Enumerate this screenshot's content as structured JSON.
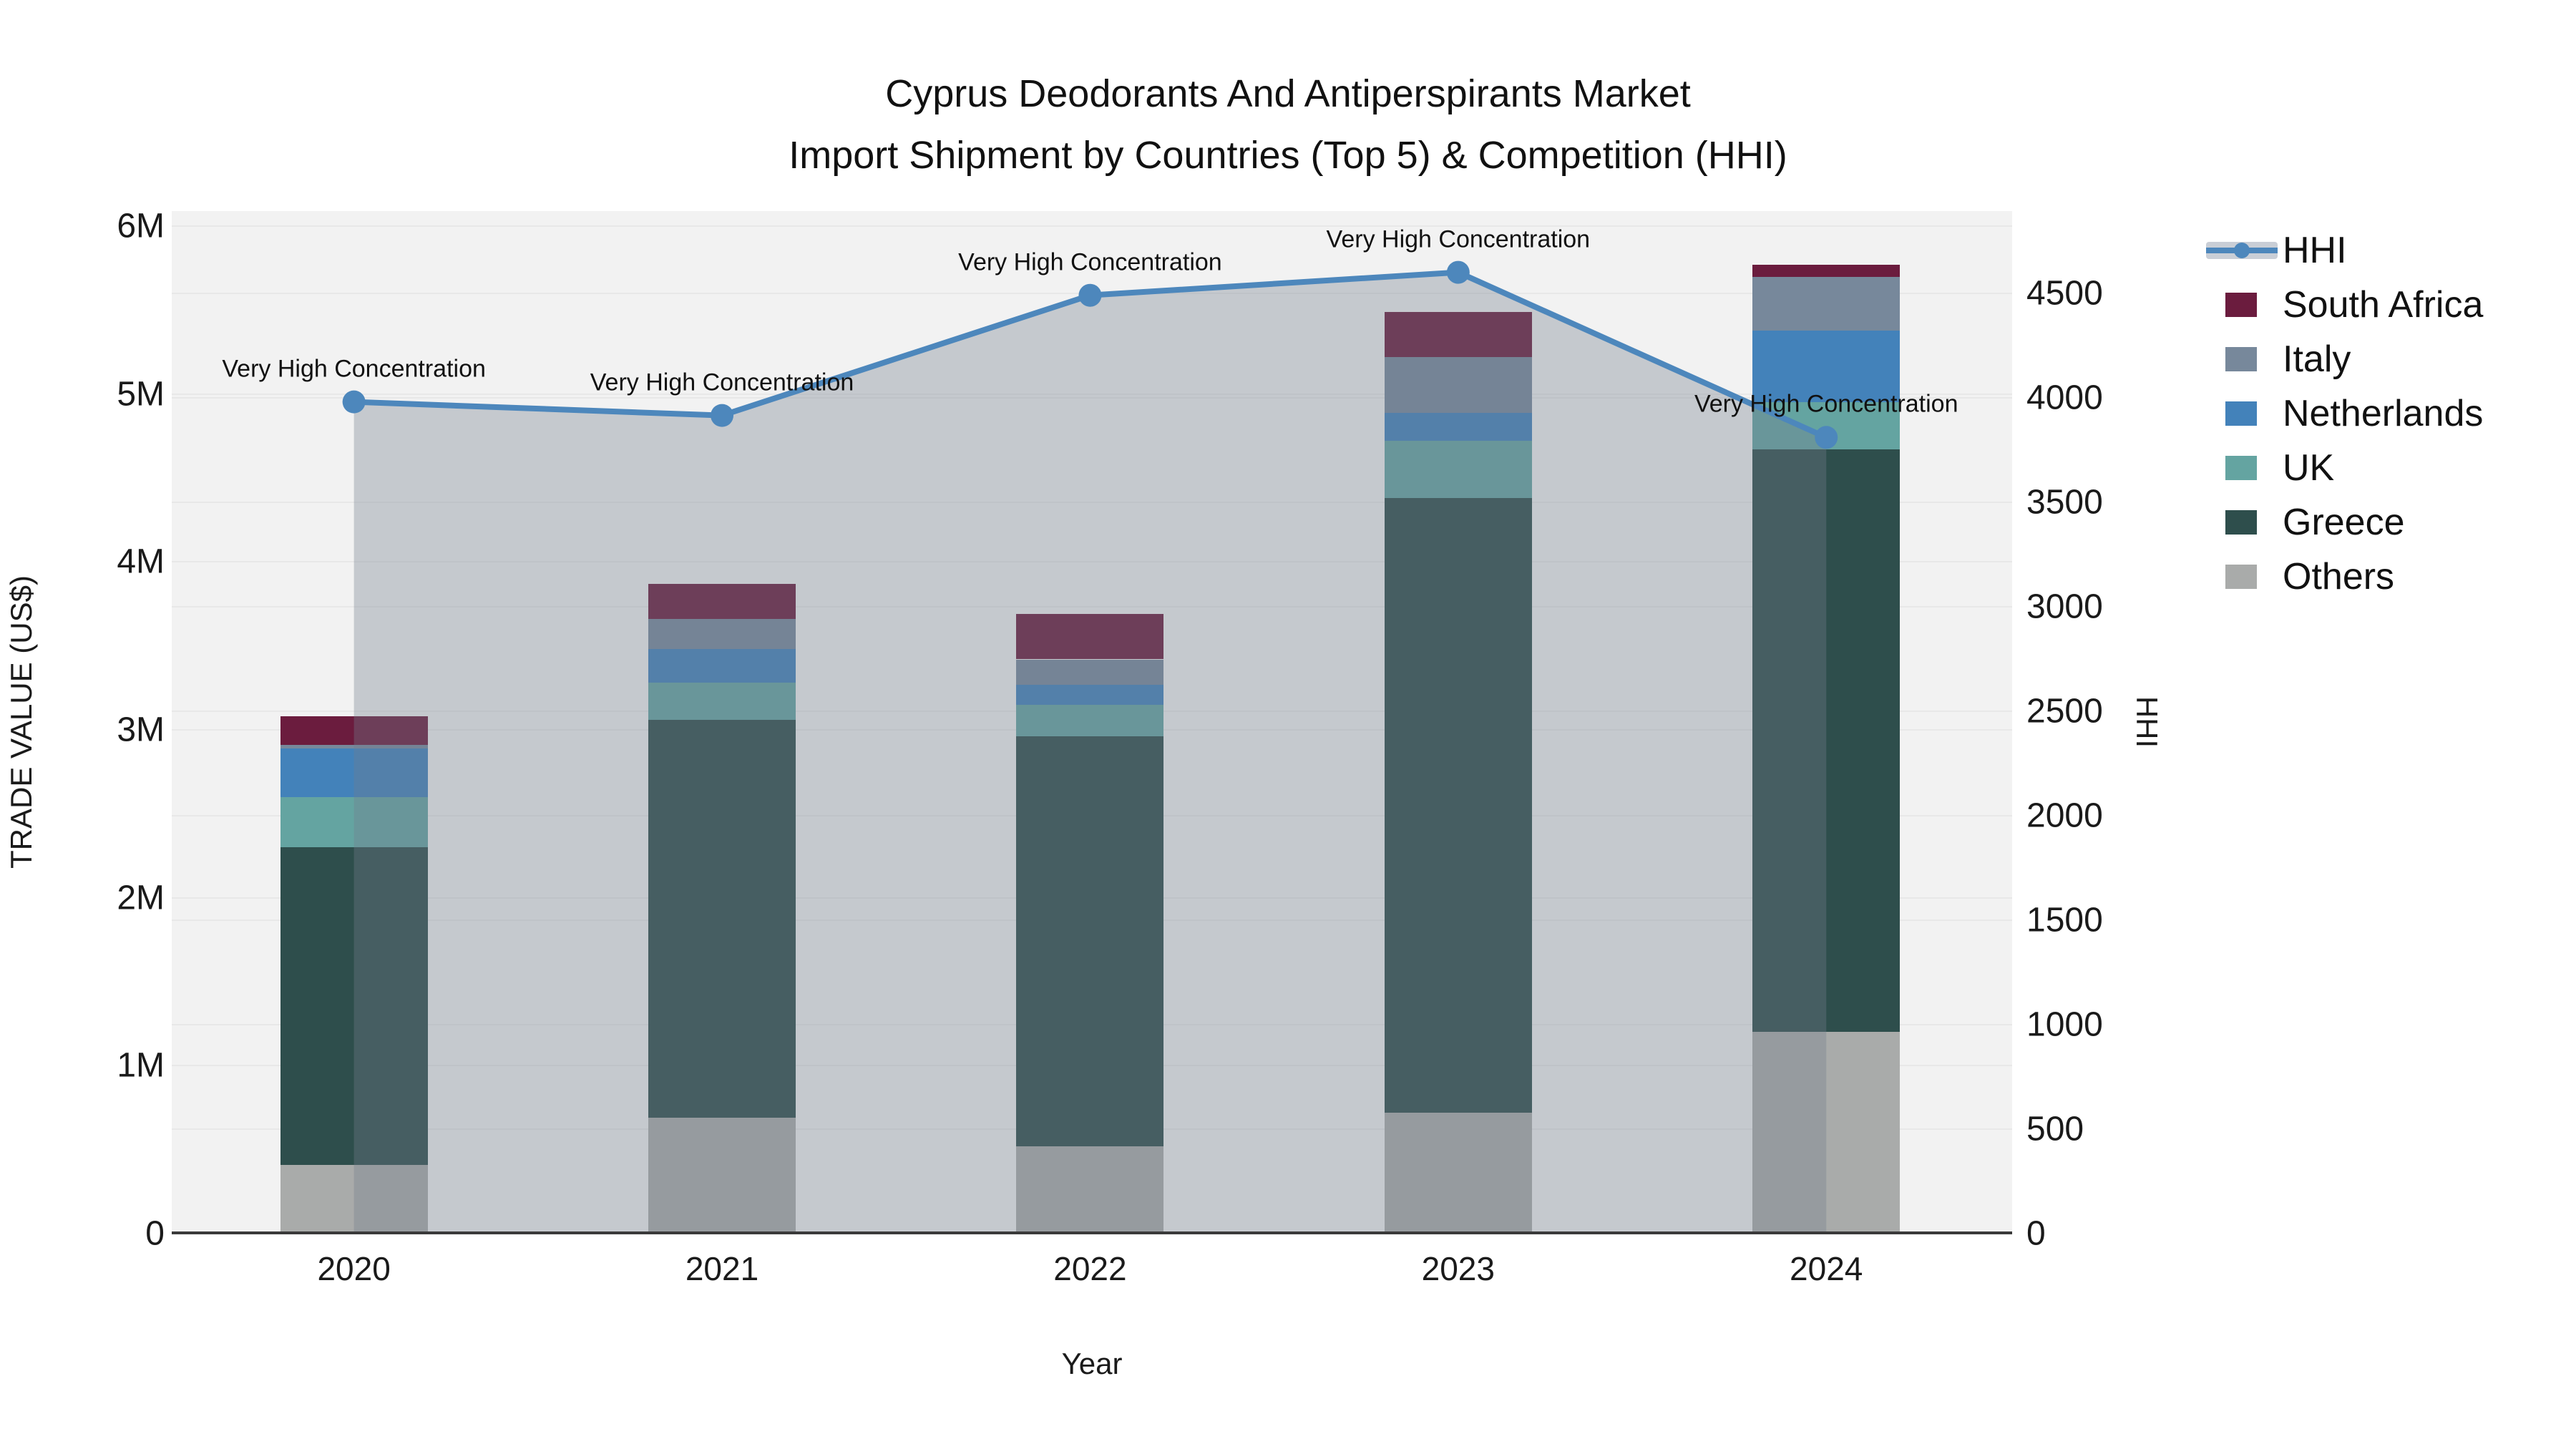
{
  "title": {
    "line1": "Cyprus Deodorants And Antiperspirants Market",
    "line2": "Import Shipment by Countries (Top 5) & Competition (HHI)"
  },
  "axes": {
    "left": {
      "label": "TRADE VALUE (US$)",
      "ticks": [
        "0",
        "1M",
        "2M",
        "3M",
        "4M",
        "5M",
        "6M"
      ],
      "tick_values": [
        0,
        1,
        2,
        3,
        4,
        5,
        6
      ],
      "max": 6.09
    },
    "right": {
      "label": "HHI",
      "ticks": [
        "0",
        "500",
        "1000",
        "1500",
        "2000",
        "2500",
        "3000",
        "3500",
        "4000",
        "4500"
      ],
      "tick_values": [
        0,
        500,
        1000,
        1500,
        2000,
        2500,
        3000,
        3500,
        4000,
        4500
      ],
      "max": 4893
    },
    "x": {
      "label": "Year",
      "categories": [
        "2020",
        "2021",
        "2022",
        "2023",
        "2024"
      ]
    }
  },
  "legend": [
    {
      "label": "HHI",
      "type": "line",
      "color": "#4d87bc"
    },
    {
      "label": "South Africa",
      "type": "box",
      "color": "#6b1c3e"
    },
    {
      "label": "Italy",
      "type": "box",
      "color": "#77889b"
    },
    {
      "label": "Netherlands",
      "type": "box",
      "color": "#4382ba"
    },
    {
      "label": "UK",
      "type": "box",
      "color": "#64a4a1"
    },
    {
      "label": "Greece",
      "type": "box",
      "color": "#2e4e4c"
    },
    {
      "label": "Others",
      "type": "box",
      "color": "#a9abaa"
    }
  ],
  "colors": {
    "plot_bg": "#f2f2f2",
    "grid": "#e8e8e8",
    "axis_line": "#3a3a3a",
    "hhi_line": "#4d87bc",
    "area_fill": "rgba(115,125,140,0.35)",
    "south_africa": "#6b1c3e",
    "italy": "#77889b",
    "netherlands": "#4382ba",
    "uk": "#64a4a1",
    "greece": "#2e4e4c",
    "others": "#a9abaa"
  },
  "chart_data": {
    "type": "bar",
    "subtype": "stacked-bars-with-line-overlay",
    "title": "Cyprus Deodorants And Antiperspirants Market — Import Shipment by Countries (Top 5) & Competition (HHI)",
    "xlabel": "Year",
    "ylabel": "TRADE VALUE (US$)",
    "ylabel_right": "HHI",
    "values_unit": "millions USD",
    "categories": [
      "2020",
      "2021",
      "2022",
      "2023",
      "2024"
    ],
    "series": [
      {
        "name": "Others",
        "color": "#a9abaa",
        "values": [
          0.41,
          0.69,
          0.52,
          0.72,
          1.2
        ]
      },
      {
        "name": "Greece",
        "color": "#2e4e4c",
        "values": [
          1.89,
          2.37,
          2.44,
          3.66,
          3.47
        ]
      },
      {
        "name": "UK",
        "color": "#64a4a1",
        "values": [
          0.3,
          0.22,
          0.19,
          0.34,
          0.28
        ]
      },
      {
        "name": "Netherlands",
        "color": "#4382ba",
        "values": [
          0.29,
          0.2,
          0.12,
          0.17,
          0.43
        ]
      },
      {
        "name": "Italy",
        "color": "#77889b",
        "values": [
          0.02,
          0.18,
          0.15,
          0.33,
          0.32
        ]
      },
      {
        "name": "South Africa",
        "color": "#6b1c3e",
        "values": [
          0.17,
          0.21,
          0.27,
          0.27,
          0.07
        ]
      }
    ],
    "line_series": {
      "name": "HHI",
      "axis": "right",
      "color": "#4d87bc",
      "values": [
        3980,
        3915,
        4490,
        4600,
        3810
      ]
    },
    "annotations": [
      "Very High Concentration",
      "Very High Concentration",
      "Very High Concentration",
      "Very High Concentration",
      "Very High Concentration"
    ],
    "ylim_left": [
      0,
      6.09
    ],
    "ylim_right": [
      0,
      4893
    ],
    "grid": true,
    "legend_position": "top-right"
  }
}
